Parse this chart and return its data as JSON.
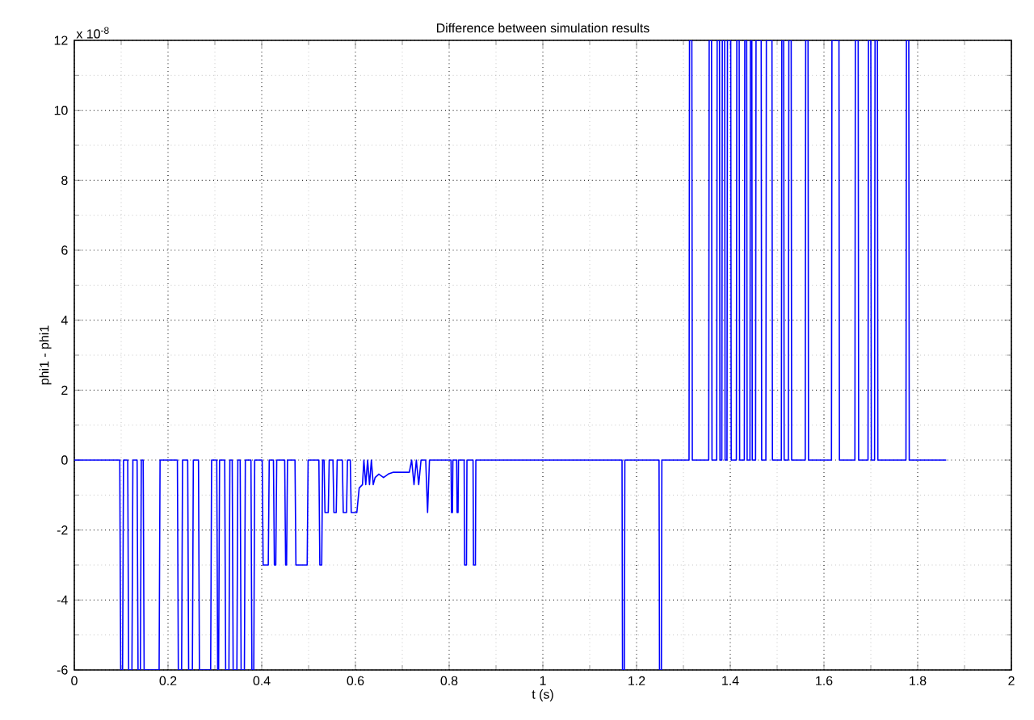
{
  "chart_data": {
    "type": "line",
    "title": "Difference between simulation results",
    "xlabel": "t (s)",
    "ylabel": "phi1 - phi1",
    "annotations": [
      "x 10$^{-8}$"
    ],
    "xlim": [
      0,
      2
    ],
    "ylim": [
      -6,
      12
    ],
    "xticks": [
      0,
      0.2,
      0.4,
      0.6,
      0.8,
      1,
      1.2,
      1.4,
      1.6,
      1.8,
      2
    ],
    "yticks": [
      -6,
      -4,
      -2,
      0,
      2,
      4,
      6,
      8,
      10,
      12
    ],
    "grid": true,
    "x": [
      0,
      0.097,
      0.099,
      0.103,
      0.105,
      0.114,
      0.116,
      0.123,
      0.125,
      0.134,
      0.136,
      0.141,
      0.143,
      0.147,
      0.149,
      0.181,
      0.183,
      0.22,
      0.222,
      0.229,
      0.231,
      0.242,
      0.244,
      0.252,
      0.254,
      0.265,
      0.267,
      0.291,
      0.293,
      0.304,
      0.306,
      0.308,
      0.31,
      0.321,
      0.323,
      0.33,
      0.332,
      0.337,
      0.339,
      0.347,
      0.349,
      0.354,
      0.356,
      0.363,
      0.365,
      0.377,
      0.379,
      0.383,
      0.385,
      0.401,
      0.403,
      0.414,
      0.416,
      0.425,
      0.427,
      0.43,
      0.432,
      0.449,
      0.451,
      0.453,
      0.455,
      0.471,
      0.473,
      0.497,
      0.499,
      0.522,
      0.524,
      0.528,
      0.53,
      0.533,
      0.535,
      0.542,
      0.544,
      0.552,
      0.554,
      0.559,
      0.561,
      0.572,
      0.574,
      0.581,
      0.583,
      0.589,
      0.591,
      0.603,
      0.608,
      0.615,
      0.618,
      0.622,
      0.626,
      0.63,
      0.634,
      0.638,
      0.642,
      0.65,
      0.66,
      0.67,
      0.68,
      0.715,
      0.72,
      0.725,
      0.73,
      0.735,
      0.74,
      0.75,
      0.754,
      0.758,
      0.804,
      0.805,
      0.807,
      0.808,
      0.816,
      0.817,
      0.819,
      0.82,
      0.832,
      0.833,
      0.837,
      0.838,
      0.851,
      0.852,
      0.856,
      0.857,
      1.169,
      1.17,
      1.174,
      1.175,
      1.248,
      1.249,
      1.253,
      1.254,
      1.312,
      1.313,
      1.318,
      1.319,
      1.354,
      1.355,
      1.36,
      1.361,
      1.371,
      1.372,
      1.377,
      1.378,
      1.382,
      1.383,
      1.388,
      1.389,
      1.393,
      1.394,
      1.401,
      1.402,
      1.413,
      1.414,
      1.419,
      1.42,
      1.43,
      1.431,
      1.435,
      1.436,
      1.442,
      1.443,
      1.446,
      1.447,
      1.454,
      1.455,
      1.466,
      1.467,
      1.476,
      1.477,
      1.489,
      1.49,
      1.509,
      1.51,
      1.514,
      1.515,
      1.524,
      1.525,
      1.53,
      1.531,
      1.56,
      1.561,
      1.566,
      1.567,
      1.616,
      1.617,
      1.632,
      1.633,
      1.666,
      1.667,
      1.673,
      1.674,
      1.694,
      1.695,
      1.7,
      1.701,
      1.708,
      1.709,
      1.714,
      1.715,
      1.775,
      1.776,
      1.781,
      1.782,
      1.861
    ],
    "series": [
      {
        "color": "#0000ff",
        "values": [
          0,
          0,
          -6,
          -6,
          0,
          0,
          -6,
          -6,
          0,
          0,
          -6,
          -6,
          0,
          0,
          -6,
          -6,
          0,
          0,
          -6,
          -6,
          0,
          0,
          -6,
          -6,
          0,
          0,
          -6,
          -6,
          0,
          0,
          -6,
          -6,
          0,
          0,
          -6,
          -6,
          0,
          0,
          -6,
          -6,
          0,
          0,
          -6,
          -6,
          0,
          0,
          -6,
          -6,
          0,
          0,
          -3,
          -3,
          0,
          0,
          -3,
          -3,
          0,
          0,
          -3,
          -3,
          0,
          0,
          -3,
          -3,
          0,
          0,
          -3,
          -3,
          0,
          0,
          -1.5,
          -1.5,
          0,
          0,
          -1.5,
          -1.5,
          0,
          0,
          -1.5,
          -1.5,
          0,
          0,
          -1.5,
          -1.5,
          -0.8,
          -0.7,
          0,
          -0.7,
          0,
          -0.7,
          0,
          -0.7,
          -0.5,
          -0.4,
          -0.5,
          -0.4,
          -0.35,
          -0.35,
          0,
          -0.7,
          0,
          -0.7,
          0,
          0,
          -1.5,
          0,
          0,
          -1.5,
          -1.5,
          0,
          0,
          -1.5,
          -1.5,
          0,
          0,
          -3,
          -3,
          0,
          0,
          -3,
          -3,
          0,
          0,
          -6,
          -6,
          0,
          0,
          -6,
          -6,
          0,
          0,
          12,
          12,
          0,
          0,
          12,
          12,
          0,
          0,
          12,
          12,
          0,
          0,
          12,
          12,
          0,
          0,
          12,
          12,
          0,
          0,
          12,
          12,
          0,
          0,
          12,
          12,
          0,
          0,
          12,
          12,
          0,
          0,
          12,
          12,
          0,
          0,
          12,
          12,
          0,
          0,
          12,
          12,
          0,
          0,
          12,
          12,
          0,
          0,
          12,
          12,
          0,
          0,
          12,
          12,
          0,
          0,
          12,
          12,
          0,
          0,
          12,
          12,
          0,
          0,
          12,
          12,
          0,
          0,
          12,
          12,
          0,
          0
        ]
      }
    ]
  }
}
